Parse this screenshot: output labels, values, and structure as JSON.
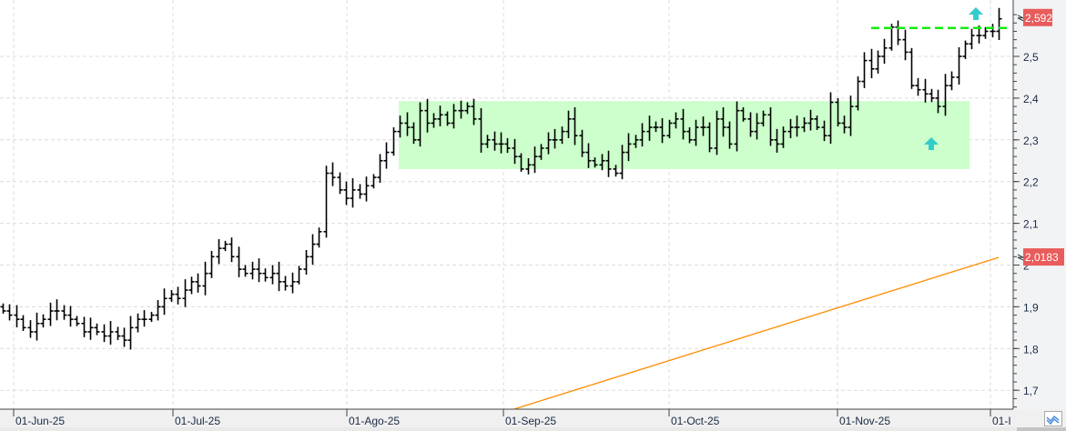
{
  "chart_data": {
    "type": "ohlc",
    "title": "",
    "xlabel": "",
    "ylabel": "",
    "ylim": [
      1.66,
      2.62
    ],
    "grid": true,
    "x_tick_labels": [
      "01-Jun-25",
      "01-Jul-25",
      "01-Ago-25",
      "01-Sep-25",
      "01-Oct-25",
      "01-Nov-25",
      "01-I"
    ],
    "y_tick_labels": [
      {
        "value": 2.5,
        "label": "2,5"
      },
      {
        "value": 2.4,
        "label": "2,4"
      },
      {
        "value": 2.3,
        "label": "2,3"
      },
      {
        "value": 2.2,
        "label": "2,2"
      },
      {
        "value": 2.1,
        "label": "2,1"
      },
      {
        "value": 2.0,
        "label": "2"
      },
      {
        "value": 1.9,
        "label": "1,9"
      },
      {
        "value": 1.8,
        "label": "1,8"
      },
      {
        "value": 1.7,
        "label": "1,7"
      }
    ],
    "closes": [
      1.89,
      1.88,
      1.87,
      1.85,
      1.84,
      1.86,
      1.87,
      1.89,
      1.89,
      1.88,
      1.87,
      1.86,
      1.84,
      1.85,
      1.84,
      1.83,
      1.84,
      1.83,
      1.82,
      1.85,
      1.87,
      1.87,
      1.88,
      1.9,
      1.92,
      1.93,
      1.92,
      1.94,
      1.96,
      1.95,
      1.98,
      2.02,
      2.04,
      2.05,
      2.02,
      1.99,
      1.98,
      1.99,
      1.98,
      1.97,
      1.98,
      1.96,
      1.95,
      1.96,
      1.99,
      2.02,
      2.05,
      2.08,
      2.22,
      2.21,
      2.18,
      2.16,
      2.18,
      2.17,
      2.19,
      2.21,
      2.25,
      2.27,
      2.32,
      2.34,
      2.33,
      2.3,
      2.37,
      2.34,
      2.35,
      2.36,
      2.34,
      2.37,
      2.37,
      2.38,
      2.35,
      2.29,
      2.3,
      2.29,
      2.29,
      2.28,
      2.26,
      2.23,
      2.24,
      2.26,
      2.28,
      2.3,
      2.3,
      2.32,
      2.35,
      2.31,
      2.27,
      2.25,
      2.24,
      2.25,
      2.23,
      2.22,
      2.27,
      2.29,
      2.3,
      2.32,
      2.33,
      2.33,
      2.31,
      2.34,
      2.35,
      2.32,
      2.3,
      2.33,
      2.33,
      2.28,
      2.35,
      2.33,
      2.29,
      2.37,
      2.35,
      2.32,
      2.34,
      2.36,
      2.3,
      2.29,
      2.32,
      2.33,
      2.33,
      2.34,
      2.35,
      2.33,
      2.31,
      2.39,
      2.34,
      2.33,
      2.38,
      2.44,
      2.49,
      2.47,
      2.5,
      2.52,
      2.57,
      2.54,
      2.51,
      2.43,
      2.42,
      2.41,
      2.4,
      2.38,
      2.43,
      2.45,
      2.5,
      2.53,
      2.55,
      2.55,
      2.56,
      2.56,
      2.59
    ],
    "moving_average": {
      "start_value": 1.655,
      "end_value": 2.0183,
      "color": "#ff8c00"
    },
    "last_price_tag": {
      "value": 2.592,
      "label": "2,592",
      "color": "#e85c5c"
    },
    "ma_price_tag": {
      "value": 2.0183,
      "label": "2,0183",
      "color": "#e85c5c"
    },
    "range_box": {
      "top": 2.393,
      "bottom": 2.23,
      "color": "#ccffcc"
    },
    "resistance_line": {
      "value": 2.568,
      "color": "#11ee11",
      "style": "dashed"
    },
    "arrows": [
      {
        "icon": "up-arrow-icon",
        "color": "#33cccc"
      },
      {
        "icon": "up-arrow-icon",
        "color": "#33cccc"
      }
    ]
  }
}
